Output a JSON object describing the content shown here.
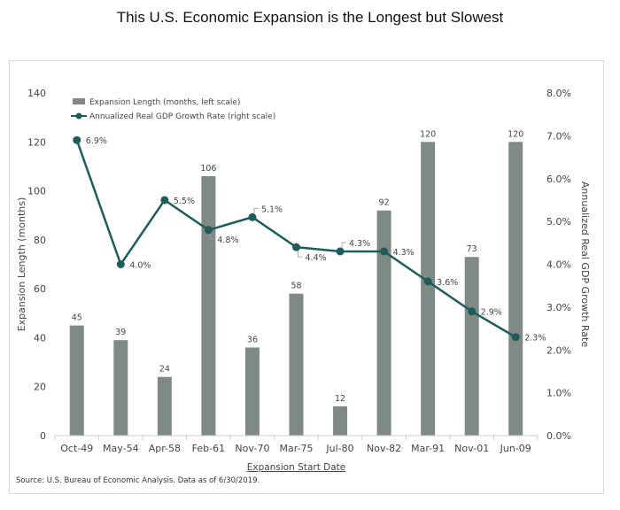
{
  "title": "This U.S. Economic Expansion is the Longest but Slowest",
  "source": "Source: U.S. Bureau of Economic Analysis. Data as of 6/30/2019.",
  "colors": {
    "bar": "#7f8a85",
    "line": "#1f5c5c",
    "axis": "#cccccc",
    "text": "#444444"
  },
  "chart_data": {
    "type": "bar",
    "categories": [
      "Oct-49",
      "May-54",
      "Apr-58",
      "Feb-61",
      "Nov-70",
      "Mar-75",
      "Jul-80",
      "Nov-82",
      "Mar-91",
      "Nov-01",
      "Jun-09"
    ],
    "series": [
      {
        "name": "Expansion Length (months, left scale)",
        "type": "bar",
        "axis": "left",
        "values": [
          45,
          39,
          24,
          106,
          36,
          58,
          12,
          92,
          120,
          73,
          120
        ],
        "labels": [
          "45",
          "39",
          "24",
          "106",
          "36",
          "58",
          "12",
          "92",
          "120",
          "73",
          "120"
        ]
      },
      {
        "name": "Annualized Real GDP Growth Rate (right scale)",
        "type": "line",
        "axis": "right",
        "values": [
          6.9,
          4.0,
          5.5,
          4.8,
          5.1,
          4.4,
          4.3,
          4.3,
          3.6,
          2.9,
          2.3
        ],
        "labels": [
          "6.9%",
          "4.0%",
          "5.5%",
          "4.8%",
          "5.1%",
          "4.4%",
          "4.3%",
          "4.3%",
          "3.6%",
          "2.9%",
          "2.3%"
        ]
      }
    ],
    "xlabel": "Expansion Start Date",
    "ylabel": "Expansion Length (months)",
    "y2label": "Annualized Real GDP Growth Rate",
    "ylim": [
      0,
      140
    ],
    "y2lim": [
      0,
      8
    ],
    "yticks": [
      "0",
      "20",
      "40",
      "60",
      "80",
      "100",
      "120",
      "140"
    ],
    "y2ticks": [
      "0.0%",
      "1.0%",
      "2.0%",
      "3.0%",
      "4.0%",
      "5.0%",
      "6.0%",
      "7.0%",
      "8.0%"
    ],
    "legend": "top-left",
    "grid": false
  }
}
